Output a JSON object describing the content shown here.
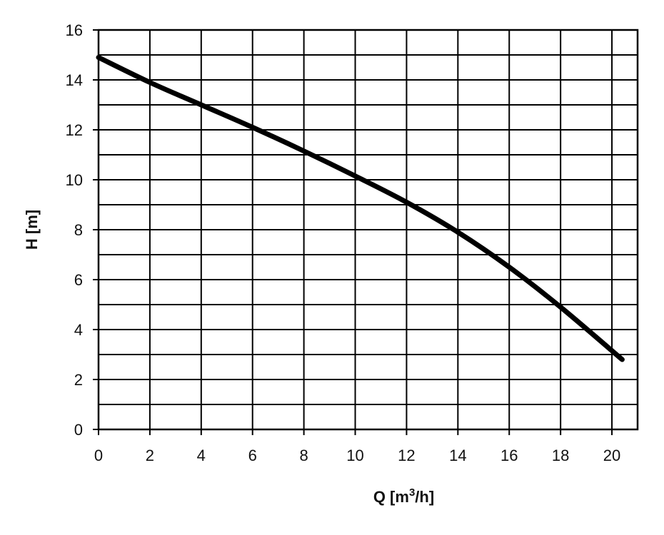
{
  "chart_data": {
    "type": "line",
    "title": "",
    "xlabel_main": "Q [m",
    "xlabel_sup": "3",
    "xlabel_tail": "/h]",
    "ylabel": "H [m]",
    "xlim": [
      0,
      21
    ],
    "ylim": [
      0,
      16
    ],
    "x_ticks": [
      0,
      2,
      4,
      6,
      8,
      10,
      12,
      14,
      16,
      18,
      20
    ],
    "y_ticks": [
      0,
      2,
      4,
      6,
      8,
      10,
      12,
      14,
      16
    ],
    "x_grid_step": 2,
    "y_grid_step": 1,
    "grid": true,
    "legend": "none",
    "colors": {
      "curve": "#000000",
      "grid": "#000000",
      "background": "#ffffff"
    },
    "series": [
      {
        "x": [
          0,
          2,
          4,
          6,
          8,
          10,
          12,
          14,
          16,
          18,
          20.4
        ],
        "y": [
          14.9,
          13.9,
          13.0,
          12.1,
          11.15,
          10.15,
          9.1,
          7.9,
          6.5,
          4.9,
          2.8
        ]
      }
    ]
  }
}
